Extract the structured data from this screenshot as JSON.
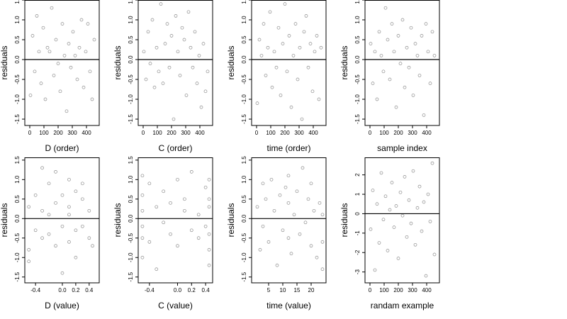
{
  "chart_data": [
    {
      "type": "scatter",
      "x_label": "D (order)",
      "y_label": "residuals",
      "reference_line": 0,
      "xlim": [
        -35,
        490
      ],
      "ylim": [
        -1.66,
        1.5
      ],
      "xticks": [
        0,
        100,
        200,
        300,
        400
      ],
      "yticks": [
        {
          "value": -1.5,
          "label": "-1.5"
        },
        {
          "value": -1,
          "label": "-1.0"
        },
        {
          "value": -0.5,
          "label": "-0.5"
        },
        {
          "value": 0,
          "label": "0.0"
        },
        0.5,
        {
          "value": 1,
          "label": "1.0"
        },
        1.5
      ],
      "x": [
        5,
        20,
        35,
        50,
        65,
        80,
        95,
        110,
        125,
        140,
        155,
        170,
        185,
        200,
        215,
        230,
        245,
        260,
        275,
        290,
        305,
        320,
        335,
        350,
        365,
        380,
        395,
        410,
        425,
        440,
        455
      ],
      "y": [
        -0.9,
        0.6,
        -0.3,
        1.1,
        0.2,
        -0.6,
        0.8,
        -1.0,
        0.3,
        0.2,
        1.3,
        -0.4,
        0.5,
        -0.1,
        -0.8,
        0.9,
        0.1,
        -1.3,
        0.4,
        -0.2,
        0.7,
        0.1,
        -0.5,
        0.3,
        1.0,
        -0.7,
        0.2,
        0.9,
        -0.3,
        -1.0,
        0.5
      ]
    },
    {
      "type": "scatter",
      "x_label": "C (order)",
      "y_label": "residuals",
      "reference_line": 0,
      "xlim": [
        -35,
        490
      ],
      "ylim": [
        -1.66,
        1.5
      ],
      "xticks": [
        0,
        100,
        200,
        300,
        400
      ],
      "yticks": [
        {
          "value": -1.5,
          "label": "-1.5"
        },
        {
          "value": -1,
          "label": "-1.0"
        },
        {
          "value": -0.5,
          "label": "-0.5"
        },
        {
          "value": 0,
          "label": "0.0"
        },
        0.5,
        {
          "value": 1,
          "label": "1.0"
        },
        1.5
      ],
      "x": [
        5,
        20,
        35,
        50,
        65,
        80,
        95,
        110,
        125,
        140,
        155,
        170,
        185,
        200,
        215,
        230,
        245,
        260,
        275,
        290,
        305,
        320,
        335,
        350,
        365,
        380,
        395,
        410,
        425,
        440,
        455
      ],
      "y": [
        0.2,
        -0.5,
        0.7,
        -0.1,
        1.0,
        -0.7,
        0.3,
        -0.3,
        1.4,
        -0.6,
        0.4,
        0.9,
        -0.2,
        0.6,
        -1.5,
        1.1,
        0.2,
        -0.4,
        0.8,
        0.5,
        -0.9,
        1.2,
        0.3,
        -0.2,
        0.7,
        -0.6,
        0.1,
        -1.2,
        0.4,
        -0.8,
        -0.3
      ]
    },
    {
      "type": "scatter",
      "x_label": "time (order)",
      "y_label": "residuals",
      "reference_line": 0,
      "xlim": [
        -35,
        490
      ],
      "ylim": [
        -1.66,
        1.5
      ],
      "xticks": [
        0,
        100,
        200,
        300,
        400
      ],
      "yticks": [
        {
          "value": -1.5,
          "label": "-1.5"
        },
        {
          "value": -1,
          "label": "-1.0"
        },
        {
          "value": -0.5,
          "label": "-0.5"
        },
        {
          "value": 0,
          "label": "0.0"
        },
        0.5,
        {
          "value": 1,
          "label": "1.0"
        },
        1.5
      ],
      "x": [
        5,
        20,
        35,
        50,
        65,
        80,
        95,
        110,
        125,
        140,
        155,
        170,
        185,
        200,
        215,
        230,
        245,
        260,
        275,
        290,
        305,
        320,
        335,
        350,
        365,
        380,
        395,
        410,
        425,
        440,
        455
      ],
      "y": [
        -1.1,
        0.5,
        0.1,
        0.9,
        -0.4,
        0.3,
        1.2,
        -0.7,
        0.2,
        -0.2,
        0.8,
        -0.9,
        0.4,
        1.4,
        -0.3,
        0.6,
        -1.2,
        0.1,
        0.9,
        -0.5,
        0.3,
        -1.5,
        0.7,
        1.1,
        -0.2,
        0.4,
        -0.8,
        0.2,
        0.6,
        -1.0,
        0.3
      ]
    },
    {
      "type": "scatter",
      "x_label": "sample index",
      "y_label": "residuals",
      "reference_line": 0,
      "xlim": [
        -35,
        490
      ],
      "ylim": [
        -1.66,
        1.5
      ],
      "xticks": [
        0,
        100,
        200,
        300,
        400
      ],
      "yticks": [
        {
          "value": -1.5,
          "label": "-1.5"
        },
        {
          "value": -1,
          "label": "-1.0"
        },
        {
          "value": -0.5,
          "label": "-0.5"
        },
        {
          "value": 0,
          "label": "0.0"
        },
        0.5,
        {
          "value": 1,
          "label": "1.0"
        },
        1.5
      ],
      "x": [
        5,
        20,
        35,
        50,
        65,
        80,
        95,
        110,
        125,
        140,
        155,
        170,
        185,
        200,
        215,
        230,
        245,
        260,
        275,
        290,
        305,
        320,
        335,
        350,
        365,
        380,
        395,
        410,
        425,
        440,
        455
      ],
      "y": [
        0.4,
        -0.6,
        0.2,
        -1.0,
        0.7,
        0.1,
        -0.3,
        1.3,
        0.5,
        -0.5,
        0.9,
        0.2,
        -1.2,
        0.6,
        -0.1,
        1.0,
        -0.7,
        0.3,
        -0.2,
        0.8,
        -0.9,
        0.4,
        0.1,
        -0.4,
        0.6,
        -1.4,
        0.9,
        0.2,
        -0.6,
        0.7,
        0.1
      ]
    },
    {
      "type": "scatter",
      "x_label": "D (value)",
      "y_label": "residuals",
      "reference_line": 0,
      "xlim": [
        -0.56,
        0.55
      ],
      "ylim": [
        -1.65,
        1.57
      ],
      "xticks": [
        -0.4,
        {
          "value": 0,
          "label": "0.0"
        },
        0.2,
        0.4
      ],
      "yticks": [
        {
          "value": -1.5,
          "label": "-1.5"
        },
        {
          "value": -1,
          "label": "-1.0"
        },
        {
          "value": -0.5,
          "label": "-0.5"
        },
        {
          "value": 0,
          "label": "0.0"
        },
        0.5,
        {
          "value": 1,
          "label": "1.0"
        },
        1.5
      ],
      "x": [
        -0.5,
        -0.5,
        -0.5,
        -0.4,
        -0.4,
        -0.3,
        -0.3,
        -0.3,
        -0.2,
        -0.2,
        -0.2,
        -0.1,
        -0.1,
        -0.1,
        0,
        0,
        0,
        0.1,
        0.1,
        0.1,
        0.1,
        0.2,
        0.2,
        0.2,
        0.3,
        0.3,
        0.3,
        0.4,
        0.4,
        0.45
      ],
      "y": [
        -0.8,
        0.3,
        -1.1,
        0.6,
        -0.3,
        1.3,
        -0.5,
        0.2,
        0.9,
        -0.4,
        0.1,
        1.2,
        -0.7,
        0.4,
        -0.2,
        0.6,
        -1.4,
        0.3,
        -0.6,
        1.0,
        0.1,
        -0.3,
        0.7,
        -1.0,
        0.5,
        -0.2,
        0.9,
        -0.5,
        0.2,
        -0.7
      ]
    },
    {
      "type": "scatter",
      "x_label": "C (value)",
      "y_label": "residuals",
      "reference_line": 0,
      "xlim": [
        -0.56,
        0.5
      ],
      "ylim": [
        -1.65,
        1.57
      ],
      "xticks": [
        -0.4,
        {
          "value": 0,
          "label": "0.0"
        },
        0.2,
        0.4
      ],
      "yticks": [
        {
          "value": -1.5,
          "label": "-1.5"
        },
        {
          "value": -1,
          "label": "-1.0"
        },
        {
          "value": -0.5,
          "label": "-0.5"
        },
        {
          "value": 0,
          "label": "0.0"
        },
        0.5,
        {
          "value": 1,
          "label": "1.0"
        },
        1.5
      ],
      "x": [
        -0.5,
        -0.5,
        -0.5,
        -0.5,
        -0.5,
        -0.5,
        -0.4,
        -0.4,
        -0.3,
        -0.3,
        -0.2,
        -0.2,
        -0.1,
        -0.1,
        0,
        0,
        0.1,
        0.1,
        0.2,
        0.2,
        0.3,
        0.3,
        0.4,
        0.4,
        0.45,
        0.45,
        0.45,
        0.45,
        0.45,
        0.45
      ],
      "y": [
        -0.5,
        0.2,
        1.1,
        -1.0,
        0.6,
        -0.2,
        0.9,
        -0.6,
        0.3,
        -1.3,
        0.7,
        -0.1,
        0.4,
        -0.4,
        1.0,
        -0.7,
        0.2,
        0.5,
        -0.3,
        1.2,
        0.1,
        -0.5,
        0.8,
        -0.2,
        -0.8,
        0.3,
        1.0,
        -1.2,
        -0.4,
        0.5
      ]
    },
    {
      "type": "scatter",
      "x_label": "time (value)",
      "y_label": "residuals",
      "reference_line": 0,
      "xlim": [
        -1,
        25.25
      ],
      "ylim": [
        -1.65,
        1.57
      ],
      "xticks": [
        5,
        10,
        15,
        20
      ],
      "yticks": [
        {
          "value": -1.5,
          "label": "-1.5"
        },
        {
          "value": -1,
          "label": "-1.0"
        },
        {
          "value": -0.5,
          "label": "-0.5"
        },
        {
          "value": 0,
          "label": "0.0"
        },
        0.5,
        {
          "value": 1,
          "label": "1.0"
        },
        1.5
      ],
      "x": [
        1,
        2,
        3,
        3,
        4,
        5,
        6,
        7,
        8,
        9,
        10,
        11,
        12,
        12,
        12,
        13,
        14,
        15,
        16,
        17,
        18,
        19,
        20,
        20,
        21,
        22,
        23,
        24,
        24,
        24
      ],
      "y": [
        0.3,
        -0.8,
        0.9,
        -0.2,
        0.5,
        -0.6,
        1.0,
        0.2,
        -1.2,
        0.6,
        -0.3,
        0.8,
        -0.5,
        0.4,
        1.1,
        -0.9,
        0.1,
        0.7,
        -0.4,
        1.3,
        -0.1,
        0.5,
        -0.7,
        0.9,
        0.2,
        -1.0,
        0.4,
        -0.6,
        0.1,
        -1.3
      ]
    },
    {
      "type": "scatter",
      "x_label": "randam example",
      "y_label": "residuals",
      "reference_line": 0,
      "xlim": [
        -35,
        490
      ],
      "ylim": [
        -3.56,
        2.9
      ],
      "xticks": [
        0,
        100,
        200,
        300,
        400
      ],
      "yticks": [
        -3,
        -2,
        -1,
        0,
        1,
        2
      ],
      "x": [
        5,
        20,
        35,
        50,
        65,
        80,
        95,
        110,
        125,
        140,
        155,
        170,
        185,
        200,
        215,
        230,
        245,
        260,
        275,
        290,
        305,
        320,
        335,
        350,
        365,
        380,
        395,
        410,
        425,
        440,
        455
      ],
      "y": [
        -0.8,
        1.2,
        -2.9,
        0.5,
        -1.5,
        2.1,
        -0.3,
        0.9,
        -1.9,
        0.2,
        1.6,
        -0.7,
        0.4,
        -2.3,
        1.1,
        -0.1,
        1.9,
        -1.2,
        0.7,
        -0.5,
        2.2,
        -1.6,
        0.3,
        1.4,
        -0.9,
        0.6,
        -3.2,
        1.0,
        -0.4,
        2.6,
        -2.1
      ]
    }
  ]
}
